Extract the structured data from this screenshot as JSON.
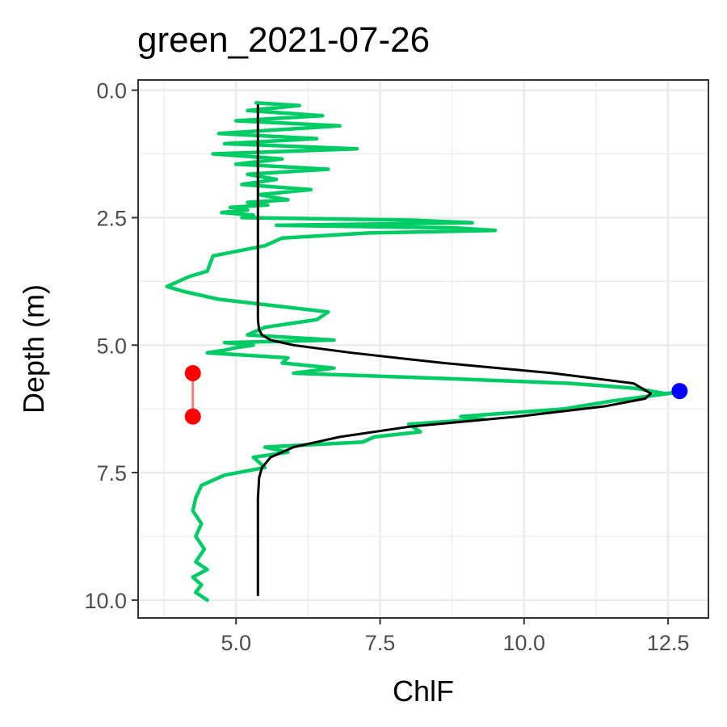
{
  "chart_data": {
    "type": "line",
    "title": "green_2021-07-26",
    "xlabel": "ChlF",
    "ylabel": "Depth (m)",
    "xlim": [
      3.3,
      13.2
    ],
    "ylim": [
      10.35,
      -0.2
    ],
    "y_reversed": true,
    "x_ticks": [
      "5.0",
      "7.5",
      "10.0",
      "12.5"
    ],
    "x_tick_values": [
      5.0,
      7.5,
      10.0,
      12.5
    ],
    "y_ticks": [
      "0.0",
      "2.5",
      "5.0",
      "7.5",
      "10.0"
    ],
    "y_tick_values": [
      0.0,
      2.5,
      5.0,
      7.5,
      10.0
    ],
    "grid": true,
    "legend": "none",
    "colors": {
      "observed": "#00cc66",
      "fitted": "#000000",
      "peak_point": "#0000ff",
      "layer_points": "#ff0000",
      "layer_segment": "#f08080",
      "grid": "#ebebeb",
      "panel_border": "#333333"
    },
    "series": [
      {
        "role": "observed",
        "x": [
          5.35,
          6.1,
          5.2,
          6.5,
          5.0,
          6.8,
          4.7,
          6.4,
          4.8,
          7.1,
          4.6,
          5.8,
          5.0,
          6.6,
          5.2,
          5.7,
          5.1,
          6.3,
          5.4,
          5.9,
          5.2,
          5.55,
          4.9,
          5.2,
          4.75,
          5.3,
          5.1,
          8.1,
          9.1,
          5.7,
          8.8,
          9.5,
          7.3,
          5.8,
          5.5,
          4.6,
          4.5,
          4.2,
          3.8,
          4.1,
          4.7,
          6.6,
          6.4,
          5.5,
          5.2,
          6.7,
          4.8,
          5.3,
          5.0,
          4.8,
          4.5,
          5.9,
          5.8,
          6.7,
          6.0,
          8.5,
          10.8,
          11.4,
          11.95,
          12.2,
          12.45,
          12.7,
          11.5,
          10.7,
          8.9,
          9.3,
          8.0,
          8.2,
          7.4,
          7.2,
          5.5,
          5.9,
          5.3,
          5.5,
          4.8,
          4.4,
          4.3,
          4.25,
          4.4,
          4.3,
          4.45,
          4.3,
          4.5,
          4.25,
          4.4,
          4.3,
          4.5
        ],
        "y": [
          0.25,
          0.3,
          0.4,
          0.5,
          0.6,
          0.7,
          0.85,
          0.95,
          1.05,
          1.15,
          1.25,
          1.35,
          1.45,
          1.55,
          1.65,
          1.75,
          1.85,
          1.95,
          2.05,
          2.15,
          2.2,
          2.25,
          2.3,
          2.35,
          2.4,
          2.45,
          2.5,
          2.55,
          2.6,
          2.65,
          2.7,
          2.75,
          2.8,
          2.9,
          3.05,
          3.25,
          3.55,
          3.65,
          3.85,
          3.95,
          4.1,
          4.35,
          4.5,
          4.65,
          4.8,
          4.9,
          4.95,
          5.0,
          5.05,
          5.1,
          5.15,
          5.25,
          5.35,
          5.45,
          5.55,
          5.65,
          5.75,
          5.8,
          5.85,
          5.9,
          5.95,
          5.92,
          6.1,
          6.25,
          6.4,
          6.45,
          6.55,
          6.7,
          6.8,
          6.9,
          7.0,
          7.1,
          7.2,
          7.4,
          7.55,
          7.75,
          8.0,
          8.25,
          8.5,
          8.75,
          9.0,
          9.25,
          9.4,
          9.55,
          9.7,
          9.85,
          10.0
        ]
      },
      {
        "role": "fitted",
        "x": [
          5.38,
          5.38,
          5.38,
          5.38,
          5.38,
          5.38,
          5.38,
          5.38,
          5.39,
          5.4,
          5.45,
          5.6,
          6.0,
          7.0,
          8.6,
          10.5,
          11.9,
          12.2,
          12.1,
          11.4,
          9.9,
          8.0,
          6.8,
          6.0,
          5.6,
          5.45,
          5.4,
          5.38,
          5.38,
          5.38
        ],
        "y": [
          0.3,
          1.0,
          2.0,
          3.0,
          3.5,
          4.0,
          4.3,
          4.5,
          4.6,
          4.7,
          4.8,
          4.9,
          5.0,
          5.15,
          5.35,
          5.55,
          5.75,
          5.95,
          6.05,
          6.2,
          6.4,
          6.6,
          6.8,
          7.0,
          7.2,
          7.4,
          7.6,
          8.0,
          9.0,
          9.9
        ]
      }
    ],
    "points": [
      {
        "role": "peak",
        "x": 12.7,
        "y": 5.9
      },
      {
        "role": "layer_top",
        "x": 4.25,
        "y": 5.55
      },
      {
        "role": "layer_bottom",
        "x": 4.25,
        "y": 6.4
      }
    ]
  }
}
